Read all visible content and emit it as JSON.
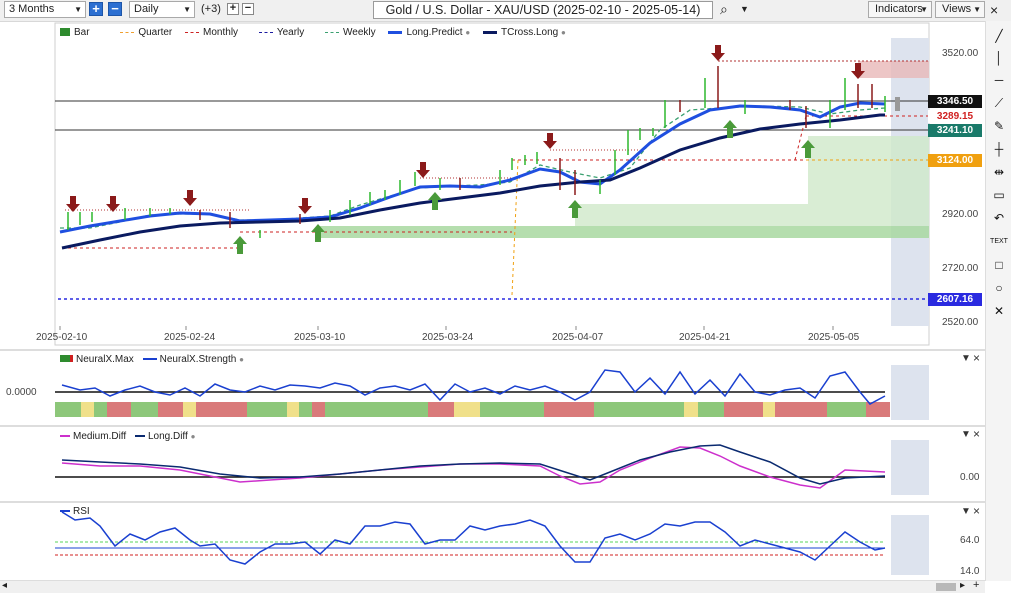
{
  "toolbar": {
    "range": "3 Months",
    "interval": "Daily",
    "overlay_count": "(+3)",
    "title": "Gold / U.S. Dollar - XAU/USD (2025-02-10 - 2025-05-14)",
    "indicators_label": "Indicators",
    "views_label": "Views"
  },
  "legend": [
    {
      "label": "Bar",
      "color": "#2e8b2e"
    },
    {
      "label": "Quarter",
      "color": "#f0a030"
    },
    {
      "label": "Monthly",
      "color": "#cc2222"
    },
    {
      "label": "Yearly",
      "color": "#1a1aa0"
    },
    {
      "label": "Weekly",
      "color": "#3aa070"
    },
    {
      "label": "Long.Predict",
      "color": "#1f4fe0"
    },
    {
      "label": "TCross.Long",
      "color": "#0a1a60"
    }
  ],
  "price_axis": [
    "3520.00",
    "2920.00",
    "2720.00",
    "2520.00"
  ],
  "price_labels": [
    {
      "value": "3346.50",
      "color": "#111111"
    },
    {
      "value": "3289.15",
      "color": "#d02020"
    },
    {
      "value": "3241.10",
      "color": "#1a7a6a"
    },
    {
      "value": "3124.00",
      "color": "#f0a010"
    },
    {
      "value": "2607.16",
      "color": "#2a2ae0"
    }
  ],
  "dates": [
    "2025-02-10",
    "2025-02-24",
    "2025-03-10",
    "2025-03-24",
    "2025-04-07",
    "2025-04-21",
    "2025-05-05"
  ],
  "panels": {
    "neuralx": {
      "legend": [
        "NeuralX.Max",
        "NeuralX.Strength"
      ],
      "axis": "0.0000"
    },
    "diff": {
      "legend": [
        "Medium.Diff",
        "Long.Diff"
      ],
      "axis": "0.00"
    },
    "rsi": {
      "legend": [
        "RSI"
      ],
      "axis_top": "64.0",
      "axis_bottom": "14.0"
    }
  },
  "right_tools": [
    "pencil-icon",
    "vertical-line-icon",
    "horizontal-line-icon",
    "fib-icon",
    "brush-icon",
    "crosshair-icon",
    "range-icon",
    "note-icon",
    "undo-icon",
    "text-icon",
    "rectangle-icon",
    "circle-icon",
    "delete-icon"
  ],
  "right_tools_text": {
    "text": "TEXT"
  },
  "colors": {
    "bull": "#2eb82e",
    "bear": "#8b1a1a",
    "predict": "#1f4fe0",
    "tcross": "#0a1a60"
  }
}
